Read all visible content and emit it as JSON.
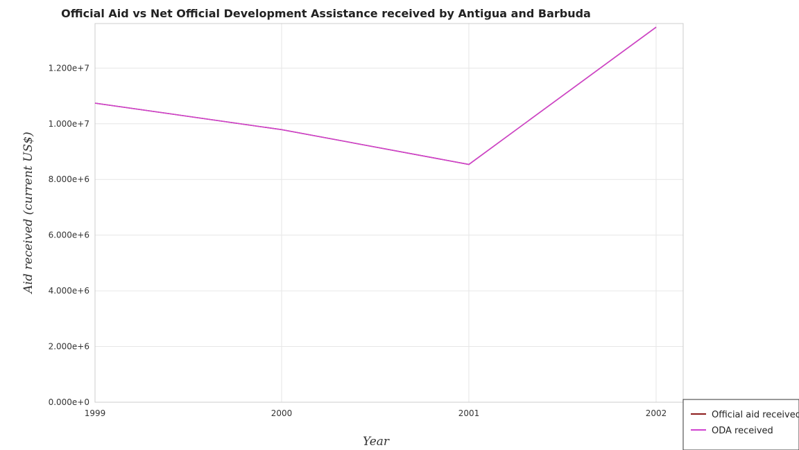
{
  "chart_data": {
    "type": "line",
    "title": "Official Aid vs Net Official Development Assistance received by Antigua and Barbuda",
    "xlabel": "Year",
    "ylabel": "Aid received (current US$)",
    "categories": [
      "1999",
      "2000",
      "2001",
      "2002"
    ],
    "yticks": [
      "0.000e+0",
      "2.000e+6",
      "4.000e+6",
      "6.000e+6",
      "8.000e+6",
      "1.000e+7",
      "1.200e+7"
    ],
    "ylim": [
      0,
      13600000
    ],
    "grid": true,
    "legend_position": "bottom-right",
    "series": [
      {
        "name": "Official aid received",
        "color": "#8b1a1a",
        "values": [
          10740000,
          9790000,
          8540000,
          13470000
        ]
      },
      {
        "name": "ODA received",
        "color": "#d040d0",
        "values": [
          10740000,
          9790000,
          8540000,
          13470000
        ]
      }
    ]
  }
}
